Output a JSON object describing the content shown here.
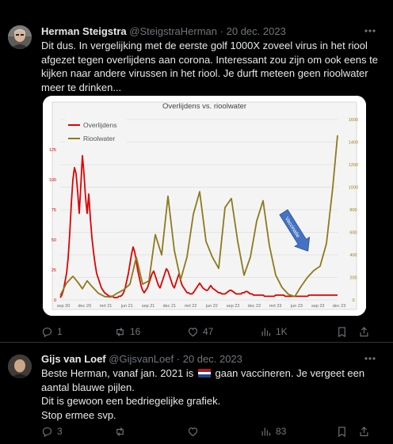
{
  "tweet1": {
    "display_name": "Herman Steigstra",
    "handle": "@SteigstraHerman",
    "separator": "·",
    "date": "20 dec. 2023",
    "text_lines": [
      "Dit dus. In vergelijking met de eerste golf 1000X zoveel virus in het riool",
      "afgezet tegen overlijdens aan corona. Interessant zou zijn om ook eens te",
      "kijken naar andere virussen in het riool. Je durft meteen geen rioolwater",
      "meer te drinken..."
    ],
    "actions": {
      "replies": "1",
      "reposts": "16",
      "likes": "47",
      "views": "1K"
    }
  },
  "tweet2": {
    "display_name": "Gijs van Loef",
    "handle": "@GijsvanLoef",
    "separator": "·",
    "date": "20 dec. 2023",
    "line1_before_flag": "Beste Herman, vanaf jan. 2021 is",
    "line1_after_flag": "gaan vaccineren. Je vergeet een",
    "text_lines_rest": [
      "aantal blauwe pijlen.",
      "Dit is gewoon een bedriegelijke grafiek.",
      "Stop ermee svp."
    ],
    "flag": "netherlands-flag",
    "actions": {
      "replies": "3",
      "reposts": "",
      "likes": "",
      "views": "83"
    }
  },
  "icons": [
    "more-icon",
    "reply-icon",
    "repost-icon",
    "like-icon",
    "views-icon",
    "bookmark-icon",
    "share-icon"
  ],
  "colors": {
    "background": "#000000",
    "text": "#e7e9ea",
    "muted": "#71767b",
    "divider": "#2f3336"
  },
  "chart_data": {
    "type": "line",
    "title": "Overlijdens vs. rioolwater",
    "x_tick_labels": [
      "sep 20",
      "dec 20",
      "mrt 21",
      "jun 21",
      "sep 21",
      "dec 21",
      "mrt 22",
      "jun 22",
      "sep 22",
      "dec 22",
      "mrt 23",
      "jun 23",
      "sep 23",
      "dec 23"
    ],
    "y_left_ticks": [
      "0",
      "25",
      "50",
      "75",
      "100",
      "125"
    ],
    "y_right_ticks": [
      "0",
      "200",
      "400",
      "600",
      "800",
      "1000",
      "1200",
      "1400",
      "1600"
    ],
    "ylim_left": [
      0,
      150
    ],
    "ylim_right": [
      0,
      1600
    ],
    "legend": "top-left",
    "annotation": {
      "text": "Vaccinatie",
      "color": "#4472c4"
    },
    "series": [
      {
        "name": "Overlijdens",
        "axis": "left",
        "color": "#e00000",
        "x": [
          0,
          1,
          2,
          3,
          4,
          5,
          6,
          7,
          8,
          9,
          10,
          11,
          12,
          13,
          14,
          15,
          16,
          17,
          18,
          19,
          20,
          21,
          22,
          23,
          24,
          25,
          26,
          27,
          28,
          29,
          30,
          31,
          32,
          33,
          34,
          35,
          36,
          37,
          38,
          39,
          40,
          41,
          42,
          43,
          44,
          45,
          46,
          47,
          48,
          49,
          50,
          51,
          52,
          53,
          54,
          55,
          56,
          57,
          58,
          59,
          60,
          61,
          62,
          63,
          64,
          65,
          66,
          67,
          68,
          69,
          70,
          71,
          72,
          73,
          74,
          75,
          76,
          77,
          78,
          79,
          80,
          81,
          82,
          83,
          84,
          85,
          86,
          87,
          88,
          89,
          90,
          91,
          92,
          93,
          94,
          95,
          96,
          97,
          98,
          99,
          100,
          101,
          102,
          103,
          104,
          105,
          106,
          107,
          108,
          109,
          110,
          111,
          112,
          113,
          114,
          115,
          116,
          117,
          118,
          119,
          120,
          121,
          122,
          123,
          124,
          125,
          126,
          127,
          128,
          129,
          130,
          131,
          132,
          133,
          134,
          135,
          136,
          137,
          138,
          139,
          140,
          141,
          142,
          143,
          144,
          145,
          146,
          147,
          148,
          149,
          150,
          151,
          152,
          153,
          154,
          155,
          156,
          157,
          158,
          159,
          160,
          161,
          162,
          163,
          164,
          165,
          166,
          167,
          168,
          169,
          170,
          171,
          172,
          173,
          174,
          175
        ],
        "values": [
          2,
          4,
          8,
          15,
          22,
          35,
          55,
          80,
          100,
          110,
          105,
          90,
          72,
          95,
          120,
          105,
          85,
          72,
          88,
          68,
          52,
          40,
          30,
          22,
          18,
          14,
          10,
          8,
          6,
          5,
          4,
          3,
          3,
          3,
          2,
          2,
          2,
          3,
          3,
          4,
          6,
          10,
          16,
          22,
          30,
          38,
          44,
          40,
          32,
          24,
          18,
          12,
          8,
          6,
          8,
          10,
          14,
          18,
          22,
          24,
          20,
          16,
          12,
          10,
          14,
          18,
          22,
          26,
          24,
          20,
          16,
          12,
          10,
          14,
          18,
          22,
          16,
          12,
          10,
          8,
          6,
          6,
          5,
          5,
          6,
          8,
          10,
          12,
          14,
          12,
          10,
          9,
          8,
          8,
          10,
          12,
          10,
          9,
          8,
          7,
          6,
          6,
          5,
          5,
          5,
          6,
          7,
          8,
          8,
          7,
          6,
          5,
          5,
          5,
          5,
          6,
          6,
          7,
          7,
          6,
          5,
          5,
          4,
          4,
          4,
          4,
          4,
          4,
          4,
          3,
          3,
          3,
          3,
          3,
          3,
          3,
          4,
          4,
          4,
          4,
          4,
          4,
          3,
          3,
          3,
          3,
          3,
          3,
          3,
          3,
          3,
          3,
          3,
          3,
          3,
          3,
          3,
          4,
          4,
          4,
          4,
          4,
          4,
          4,
          4,
          4,
          4,
          4,
          4,
          4,
          4,
          4,
          4,
          4,
          4,
          4
        ]
      },
      {
        "name": "Rioolwater",
        "axis": "right",
        "color": "#8c7a1c",
        "x": [
          0,
          4,
          8,
          11,
          14,
          17,
          20,
          24,
          28,
          32,
          36,
          40,
          44,
          48,
          52,
          56,
          60,
          64,
          68,
          72,
          76,
          80,
          84,
          88,
          92,
          96,
          100,
          104,
          108,
          112,
          116,
          120,
          124,
          128,
          132,
          136,
          140,
          144,
          148,
          152,
          156,
          160,
          164,
          168,
          172,
          175
        ],
        "values": [
          40,
          150,
          210,
          160,
          100,
          170,
          120,
          60,
          30,
          25,
          60,
          90,
          140,
          380,
          140,
          170,
          580,
          400,
          920,
          440,
          180,
          380,
          760,
          960,
          520,
          380,
          280,
          820,
          900,
          520,
          220,
          380,
          700,
          880,
          480,
          220,
          110,
          50,
          30,
          120,
          200,
          260,
          300,
          500,
          1000,
          1460
        ]
      }
    ]
  }
}
